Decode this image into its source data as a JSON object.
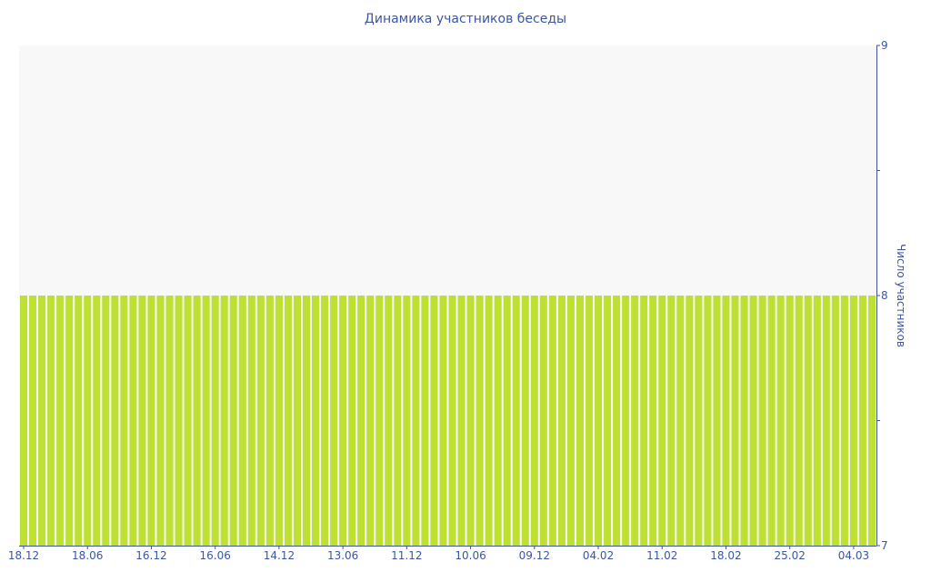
{
  "chart_data": {
    "type": "bar",
    "title": "Динамика участников беседы",
    "ylabel": "Число участников",
    "ylim": [
      7,
      9
    ],
    "y_ticks": [
      "7",
      "8",
      "9"
    ],
    "y_axis_position": "right",
    "x_tick_labels": [
      "18.12",
      "18.06",
      "16.12",
      "16.06",
      "14.12",
      "13.06",
      "11.12",
      "10.06",
      "09.12",
      "04.02",
      "11.02",
      "18.02",
      "25.02",
      "04.03"
    ],
    "values": [
      8,
      8,
      8,
      8,
      8,
      8,
      8,
      8,
      8,
      8,
      8,
      8,
      8,
      8,
      8,
      8,
      8,
      8,
      8,
      8,
      8,
      8,
      8,
      8,
      8,
      8,
      8,
      8,
      8,
      8,
      8,
      8,
      8,
      8,
      8,
      8,
      8,
      8,
      8,
      8,
      8,
      8,
      8,
      8,
      8,
      8,
      8,
      8,
      8,
      8,
      8,
      8,
      8,
      8,
      8,
      8,
      8,
      8,
      8,
      8,
      8,
      8,
      8,
      8,
      8,
      8,
      8,
      8,
      8,
      8,
      8,
      8,
      8,
      8,
      8,
      8,
      8,
      8,
      8,
      8,
      8,
      8,
      8,
      8,
      8,
      8,
      8,
      8,
      8,
      8,
      8,
      8,
      8,
      8
    ],
    "legend": "none",
    "grid": false,
    "colors": {
      "bar": "#bde032",
      "axis": "#3d55a3",
      "plot_bg": "#f8f8f8"
    }
  }
}
